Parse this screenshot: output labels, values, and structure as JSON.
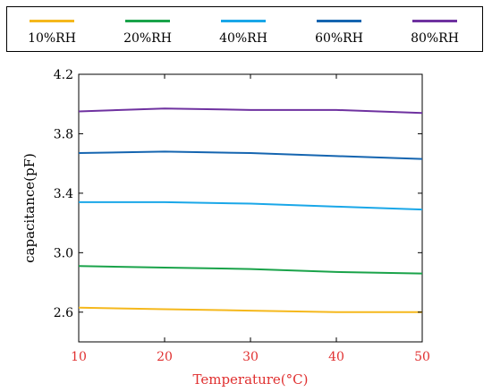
{
  "chart_data": {
    "type": "line",
    "xlabel": "Temperature(°C)",
    "ylabel": "capacitance(pF)",
    "x": [
      10,
      20,
      30,
      40,
      50
    ],
    "x_ticks": [
      10,
      20,
      30,
      40,
      50
    ],
    "y_ticks": [
      "2.6",
      "3.0",
      "3.4",
      "3.8",
      "4.2"
    ],
    "xlim": [
      10,
      50
    ],
    "ylim": [
      2.4,
      4.2
    ],
    "grid": false,
    "legend_position": "top",
    "axis_tick_color": "#e03030",
    "series": [
      {
        "name": "10%RH",
        "color": "#f5b81c",
        "values": [
          2.63,
          2.62,
          2.61,
          2.6,
          2.6
        ]
      },
      {
        "name": "20%RH",
        "color": "#1aa34a",
        "values": [
          2.91,
          2.9,
          2.89,
          2.87,
          2.86
        ]
      },
      {
        "name": "40%RH",
        "color": "#1aa7e8",
        "values": [
          3.34,
          3.34,
          3.33,
          3.31,
          3.29
        ]
      },
      {
        "name": "60%RH",
        "color": "#1565b0",
        "values": [
          3.67,
          3.68,
          3.67,
          3.65,
          3.63
        ]
      },
      {
        "name": "80%RH",
        "color": "#6f32a0",
        "values": [
          3.95,
          3.97,
          3.96,
          3.96,
          3.94
        ]
      }
    ]
  }
}
